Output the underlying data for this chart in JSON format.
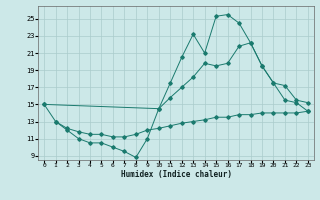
{
  "title": "",
  "xlabel": "Humidex (Indice chaleur)",
  "bg_color": "#cce8e8",
  "grid_color": "#aacccc",
  "line_color": "#1a7a6e",
  "xlim": [
    -0.5,
    23.5
  ],
  "ylim": [
    8.5,
    26.5
  ],
  "yticks": [
    9,
    11,
    13,
    15,
    17,
    19,
    21,
    23,
    25
  ],
  "xticks": [
    0,
    1,
    2,
    3,
    4,
    5,
    6,
    7,
    8,
    9,
    10,
    11,
    12,
    13,
    14,
    15,
    16,
    17,
    18,
    19,
    20,
    21,
    22,
    23
  ],
  "line1_x": [
    0,
    1,
    2,
    3,
    4,
    5,
    6,
    7,
    8,
    9,
    10,
    11,
    12,
    13,
    14,
    15,
    16,
    17,
    18,
    19,
    20,
    21,
    22,
    23
  ],
  "line1_y": [
    15,
    13,
    12,
    11,
    10.5,
    10.5,
    10,
    9.5,
    8.8,
    11,
    14.5,
    17.5,
    20.5,
    23.2,
    21,
    25.3,
    25.5,
    24.5,
    22.2,
    19.5,
    17.5,
    15.5,
    15.2,
    14.2
  ],
  "line2_x": [
    0,
    10,
    11,
    12,
    13,
    14,
    15,
    16,
    17,
    18,
    19,
    20,
    21,
    22,
    23
  ],
  "line2_y": [
    15,
    14.5,
    15.8,
    17.0,
    18.2,
    19.8,
    19.5,
    19.8,
    21.8,
    22.2,
    19.5,
    17.5,
    17.2,
    15.5,
    15.2
  ],
  "line3_x": [
    1,
    2,
    3,
    4,
    5,
    6,
    7,
    8,
    9,
    10,
    11,
    12,
    13,
    14,
    15,
    16,
    17,
    18,
    19,
    20,
    21,
    22,
    23
  ],
  "line3_y": [
    13,
    12.2,
    11.8,
    11.5,
    11.5,
    11.2,
    11.2,
    11.5,
    12.0,
    12.2,
    12.5,
    12.8,
    13.0,
    13.2,
    13.5,
    13.5,
    13.8,
    13.8,
    14.0,
    14.0,
    14.0,
    14.0,
    14.2
  ]
}
